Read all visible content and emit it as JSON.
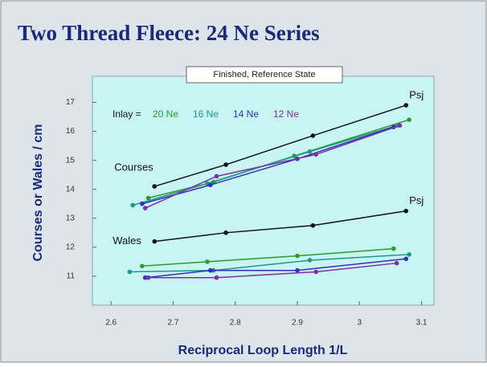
{
  "chart_data": {
    "type": "line",
    "title": "Two Thread Fleece: 24 Ne Series",
    "subtitle": "Finished, Reference State",
    "x_label": "Reciprocal Loop Length  1/L",
    "y_label": "Courses or Wales / cm",
    "legend_label": "Inlay =",
    "xlim": [
      2.57,
      3.12
    ],
    "xticks": [
      2.6,
      2.7,
      2.8,
      2.9,
      3.0,
      3.1
    ],
    "ylim": [
      10,
      17.9
    ],
    "yticks": [
      11,
      12,
      13,
      14,
      15,
      16,
      17
    ],
    "groups": [
      {
        "label": "Courses",
        "series": [
          {
            "name": "Psj",
            "color": "#111111",
            "x": [
              2.67,
              2.785,
              2.925,
              3.075
            ],
            "values": [
              14.1,
              14.85,
              15.85,
              16.9
            ]
          },
          {
            "name": "20 Ne",
            "color": "#2a9d2a",
            "x": [
              2.66,
              2.765,
              2.895,
              3.08
            ],
            "values": [
              13.7,
              14.25,
              15.15,
              16.4
            ]
          },
          {
            "name": "16 Ne",
            "color": "#1a9a8a",
            "x": [
              2.635,
              2.755,
              2.92,
              3.06
            ],
            "values": [
              13.45,
              14.2,
              15.3,
              16.2
            ]
          },
          {
            "name": "14 Ne",
            "color": "#3030c0",
            "x": [
              2.65,
              2.76,
              2.9,
              3.055
            ],
            "values": [
              13.5,
              14.15,
              15.05,
              16.15
            ]
          },
          {
            "name": "12 Ne",
            "color": "#8030a0",
            "x": [
              2.655,
              2.77,
              2.93,
              3.065
            ],
            "values": [
              13.35,
              14.45,
              15.2,
              16.2
            ]
          }
        ]
      },
      {
        "label": "Wales",
        "series": [
          {
            "name": "Psj",
            "color": "#111111",
            "x": [
              2.67,
              2.785,
              2.925,
              3.075
            ],
            "values": [
              12.2,
              12.5,
              12.75,
              13.25
            ]
          },
          {
            "color": "#2a9d2a",
            "x": [
              2.65,
              2.755,
              2.9,
              3.055
            ],
            "values": [
              11.35,
              11.5,
              11.7,
              11.95
            ]
          },
          {
            "color": "#1a9a8a",
            "x": [
              2.63,
              2.765,
              2.92,
              3.08
            ],
            "values": [
              11.15,
              11.2,
              11.55,
              11.75
            ]
          },
          {
            "color": "#3030c0",
            "x": [
              2.655,
              2.76,
              2.9,
              3.075
            ],
            "values": [
              10.95,
              11.2,
              11.2,
              11.6
            ]
          },
          {
            "color": "#8030a0",
            "x": [
              2.66,
              2.77,
              2.93,
              3.06
            ],
            "values": [
              10.95,
              10.95,
              11.15,
              11.45
            ]
          }
        ]
      }
    ]
  }
}
